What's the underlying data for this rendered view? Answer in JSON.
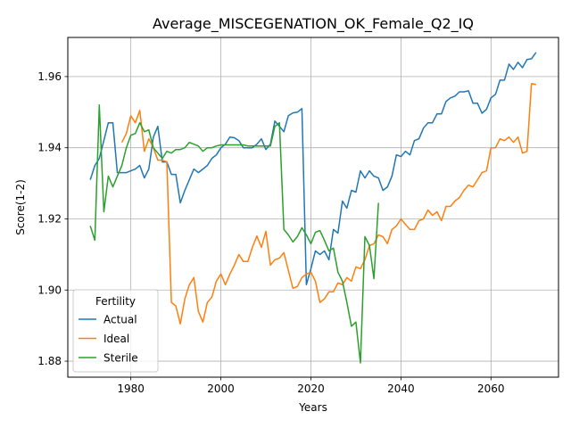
{
  "chart_data": {
    "type": "line",
    "title": "Average_MISCEGENATION_OK_Female_Q2_IQ",
    "xlabel": "Years",
    "ylabel": "Score(1-2)",
    "xlim": [
      1966,
      2075
    ],
    "ylim": [
      1.8755,
      1.971
    ],
    "xticks": [
      1980,
      2000,
      2020,
      2040,
      2060
    ],
    "yticks": [
      1.88,
      1.9,
      1.92,
      1.94,
      1.96
    ],
    "ytick_labels": [
      "1.88",
      "1.90",
      "1.92",
      "1.94",
      "1.96"
    ],
    "grid": true,
    "legend": {
      "title": "Fertility",
      "placement": "lower-left"
    },
    "series": [
      {
        "name": "Actual",
        "color": "#1f77b4",
        "x": [
          1971,
          1972,
          1973,
          1974,
          1975,
          1976,
          1977,
          1978,
          1979,
          1980,
          1981,
          1982,
          1983,
          1984,
          1985,
          1986,
          1987,
          1988,
          1989,
          1990,
          1991,
          1992,
          1993,
          1994,
          1995,
          1996,
          1997,
          1998,
          1999,
          2000,
          2001,
          2002,
          2003,
          2004,
          2005,
          2006,
          2007,
          2008,
          2009,
          2010,
          2011,
          2012,
          2013,
          2014,
          2015,
          2016,
          2017,
          2018,
          2019,
          2020,
          2021,
          2022,
          2023,
          2024,
          2025,
          2026,
          2027,
          2028,
          2029,
          2030,
          2031,
          2032,
          2033,
          2034,
          2035,
          2036,
          2037,
          2038,
          2039,
          2040,
          2041,
          2042,
          2043,
          2044,
          2045,
          2046,
          2047,
          2048,
          2049,
          2050,
          2051,
          2052,
          2053,
          2054,
          2055,
          2056,
          2057,
          2058,
          2059,
          2060,
          2061,
          2062,
          2063,
          2064,
          2065,
          2066,
          2067,
          2068,
          2069,
          2070
        ],
        "values": [
          1.931,
          1.935,
          1.937,
          1.942,
          1.947,
          1.947,
          1.933,
          1.933,
          1.933,
          1.9335,
          1.934,
          1.935,
          1.9315,
          1.934,
          1.943,
          1.946,
          1.936,
          1.936,
          1.9325,
          1.9325,
          1.9245,
          1.928,
          1.931,
          1.934,
          1.933,
          1.934,
          1.935,
          1.937,
          1.938,
          1.94,
          1.941,
          1.943,
          1.9428,
          1.942,
          1.94,
          1.94,
          1.94,
          1.941,
          1.9425,
          1.9395,
          1.941,
          1.9475,
          1.946,
          1.9445,
          1.949,
          1.9498,
          1.95,
          1.951,
          1.9015,
          1.906,
          1.911,
          1.91,
          1.911,
          1.9085,
          1.917,
          1.916,
          1.925,
          1.923,
          1.928,
          1.9275,
          1.9335,
          1.9315,
          1.9335,
          1.932,
          1.9315,
          1.928,
          1.929,
          1.932,
          1.938,
          1.9375,
          1.939,
          1.938,
          1.942,
          1.9425,
          1.9455,
          1.947,
          1.947,
          1.9495,
          1.9495,
          1.953,
          1.954,
          1.9545,
          1.9557,
          1.9557,
          1.956,
          1.9525,
          1.9525,
          1.9497,
          1.9508,
          1.954,
          1.955,
          1.959,
          1.959,
          1.9635,
          1.962,
          1.964,
          1.9625,
          1.9648,
          1.965,
          1.9668
        ]
      },
      {
        "name": "Ideal",
        "color": "#ff7f0e",
        "x": [
          1978,
          1979,
          1980,
          1981,
          1982,
          1983,
          1984,
          1985,
          1986,
          1987,
          1988,
          1989,
          1990,
          1991,
          1992,
          1993,
          1994,
          1995,
          1996,
          1997,
          1998,
          1999,
          2000,
          2001,
          2002,
          2003,
          2004,
          2005,
          2006,
          2007,
          2008,
          2009,
          2010,
          2011,
          2012,
          2013,
          2014,
          2015,
          2016,
          2017,
          2018,
          2019,
          2020,
          2021,
          2022,
          2023,
          2024,
          2025,
          2026,
          2027,
          2028,
          2029,
          2030,
          2031,
          2032,
          2033,
          2034,
          2035,
          2036,
          2037,
          2038,
          2039,
          2040,
          2041,
          2042,
          2043,
          2044,
          2045,
          2046,
          2047,
          2048,
          2049,
          2050,
          2051,
          2052,
          2053,
          2054,
          2055,
          2056,
          2057,
          2058,
          2059,
          2060,
          2061,
          2062,
          2063,
          2064,
          2065,
          2066,
          2067,
          2068,
          2069,
          2070
        ],
        "values": [
          1.9415,
          1.944,
          1.949,
          1.947,
          1.9505,
          1.939,
          1.9425,
          1.94,
          1.9365,
          1.9365,
          1.936,
          1.8965,
          1.8955,
          1.8905,
          1.8975,
          1.9015,
          1.9035,
          1.894,
          1.891,
          1.8965,
          1.898,
          1.9025,
          1.9045,
          1.9015,
          1.9045,
          1.907,
          1.91,
          1.908,
          1.908,
          1.912,
          1.9152,
          1.912,
          1.9165,
          1.907,
          1.9085,
          1.909,
          1.9105,
          1.9055,
          1.9005,
          1.901,
          1.9035,
          1.9045,
          1.905,
          1.9025,
          1.8965,
          1.8975,
          1.8995,
          1.8995,
          1.902,
          1.9015,
          1.9035,
          1.9025,
          1.9065,
          1.906,
          1.9085,
          1.9125,
          1.913,
          1.9155,
          1.915,
          1.913,
          1.917,
          1.918,
          1.92,
          1.9185,
          1.917,
          1.917,
          1.9195,
          1.92,
          1.9225,
          1.921,
          1.922,
          1.9195,
          1.9235,
          1.9235,
          1.925,
          1.926,
          1.928,
          1.9295,
          1.929,
          1.931,
          1.933,
          1.9335,
          1.94,
          1.94,
          1.9425,
          1.942,
          1.943,
          1.9415,
          1.943,
          1.9385,
          1.939,
          1.958,
          1.9578
        ]
      },
      {
        "name": "Sterile",
        "color": "#2ca02c",
        "x": [
          1971,
          1972,
          1973,
          1974,
          1975,
          1976,
          1977,
          1978,
          1979,
          1980,
          1981,
          1982,
          1983,
          1984,
          1985,
          1986,
          1987,
          1988,
          1989,
          1990,
          1991,
          1992,
          1993,
          1994,
          1995,
          1996,
          1997,
          1998,
          1999,
          2000,
          2001,
          2002,
          2003,
          2004,
          2005,
          2006,
          2007,
          2008,
          2009,
          2010,
          2011,
          2012,
          2013,
          2014,
          2015,
          2016,
          2017,
          2018,
          2019,
          2020,
          2021,
          2022,
          2023,
          2024,
          2025,
          2026,
          2027,
          2028,
          2029,
          2030,
          2031,
          2032,
          2033,
          2034,
          2035
        ],
        "values": [
          1.918,
          1.914,
          1.952,
          1.922,
          1.932,
          1.929,
          1.932,
          1.935,
          1.94,
          1.9435,
          1.944,
          1.947,
          1.9445,
          1.945,
          1.94,
          1.9385,
          1.937,
          1.939,
          1.9385,
          1.9395,
          1.9395,
          1.94,
          1.9415,
          1.941,
          1.9405,
          1.939,
          1.94,
          1.94,
          1.9405,
          1.9408,
          1.9408,
          1.9408,
          1.9408,
          1.9408,
          1.9408,
          1.9405,
          1.9405,
          1.9405,
          1.9405,
          1.9405,
          1.9405,
          1.946,
          1.947,
          1.917,
          1.9155,
          1.9135,
          1.915,
          1.9175,
          1.9155,
          1.913,
          1.9162,
          1.9167,
          1.914,
          1.911,
          1.9118,
          1.905,
          1.9025,
          1.8965,
          1.8898,
          1.891,
          1.8795,
          1.915,
          1.9125,
          1.9032,
          1.9245
        ]
      }
    ]
  }
}
